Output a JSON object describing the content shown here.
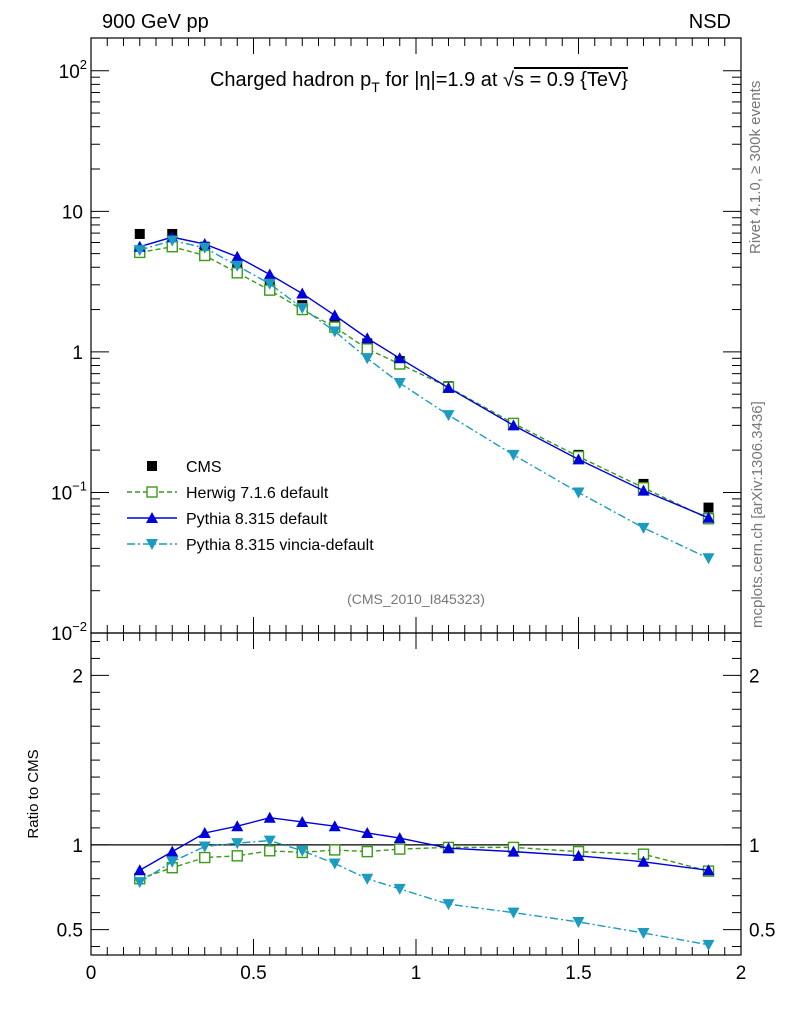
{
  "header": {
    "left": "900 GeV pp",
    "right": "NSD"
  },
  "side": {
    "rivet": "Rivet 4.1.0, ≥ 300k events",
    "mcplots": "mcplots.cern.ch [arXiv:1306.3436]"
  },
  "chart_data": [
    {
      "type": "line",
      "title": "Charged hadron p_T for |η|=1.9 at √s = 0.9 {TeV}",
      "title_parts": {
        "pre": "Charged hadron p",
        "sub": "T",
        "mid": " for |η|=1.9 at ",
        "root": "√",
        "post": "s = 0.9 {TeV}"
      },
      "annotation": "(CMS_2010_I845323)",
      "yscale": "log",
      "xlim": [
        0,
        2
      ],
      "ylim": [
        0.01,
        150
      ],
      "yticks": [
        {
          "value": 100,
          "label": "10",
          "sup": "2"
        },
        {
          "value": 10,
          "label": "10",
          "sup": ""
        },
        {
          "value": 1,
          "label": "1",
          "sup": ""
        },
        {
          "value": 0.1,
          "label": "10",
          "sup": "−1"
        },
        {
          "value": 0.01,
          "label": "10",
          "sup": "−2"
        }
      ],
      "legend_position": "lower-left",
      "x": [
        0.15,
        0.25,
        0.35,
        0.45,
        0.55,
        0.65,
        0.75,
        0.85,
        0.95,
        1.1,
        1.3,
        1.5,
        1.7,
        1.9
      ],
      "series": [
        {
          "name": "CMS",
          "color": "#000000",
          "marker": "square",
          "line": "none",
          "values": [
            6.9,
            6.9,
            5.6,
            4.0,
            2.95,
            2.15,
            1.58,
            1.15,
            0.86,
            0.57,
            0.31,
            0.185,
            0.115,
            0.078
          ]
        },
        {
          "name": "Herwig 7.1.6 default",
          "color": "#3a9a1a",
          "marker": "open-square",
          "line": "dashed",
          "values": [
            5.1,
            5.6,
            4.85,
            3.65,
            2.75,
            2.0,
            1.5,
            1.05,
            0.82,
            0.56,
            0.31,
            0.18,
            0.108,
            0.065
          ]
        },
        {
          "name": "Pythia 8.315 default",
          "color": "#0000dd",
          "marker": "triangle-up",
          "line": "solid",
          "values": [
            5.6,
            6.55,
            5.85,
            4.75,
            3.55,
            2.6,
            1.82,
            1.25,
            0.9,
            0.555,
            0.3,
            0.172,
            0.103,
            0.066
          ]
        },
        {
          "name": "Pythia 8.315 vincia-default",
          "color": "#1a9bbf",
          "marker": "triangle-down",
          "line": "dashdot",
          "values": [
            5.3,
            6.2,
            5.5,
            4.1,
            3.05,
            2.05,
            1.4,
            0.9,
            0.6,
            0.355,
            0.185,
            0.1,
            0.056,
            0.034
          ]
        }
      ]
    },
    {
      "type": "line",
      "ylabel": "Ratio to CMS",
      "xlim": [
        0,
        2
      ],
      "ylim": [
        0.35,
        2.25
      ],
      "yticks": [
        {
          "value": 0.5,
          "label": "0.5"
        },
        {
          "value": 1,
          "label": "1"
        },
        {
          "value": 2,
          "label": "2"
        }
      ],
      "xticks": [
        {
          "value": 0,
          "label": "0"
        },
        {
          "value": 0.5,
          "label": "0.5"
        },
        {
          "value": 1,
          "label": "1"
        },
        {
          "value": 1.5,
          "label": "1.5"
        },
        {
          "value": 2,
          "label": "2"
        }
      ],
      "reference_line": 1,
      "x": [
        0.15,
        0.25,
        0.35,
        0.45,
        0.55,
        0.65,
        0.75,
        0.85,
        0.95,
        1.1,
        1.3,
        1.5,
        1.7,
        1.9
      ],
      "series": [
        {
          "name": "Herwig 7.1.6 default",
          "color": "#3a9a1a",
          "marker": "open-square",
          "line": "dashed",
          "values": [
            0.8,
            0.865,
            0.925,
            0.935,
            0.965,
            0.955,
            0.97,
            0.96,
            0.975,
            0.985,
            0.985,
            0.96,
            0.945,
            0.845
          ]
        },
        {
          "name": "Pythia 8.315 default",
          "color": "#0000dd",
          "marker": "triangle-up",
          "line": "solid",
          "values": [
            0.85,
            0.96,
            1.07,
            1.11,
            1.16,
            1.135,
            1.11,
            1.07,
            1.04,
            0.98,
            0.96,
            0.935,
            0.9,
            0.85
          ]
        },
        {
          "name": "Pythia 8.315 vincia-default",
          "color": "#1a9bbf",
          "marker": "triangle-down",
          "line": "dashdot",
          "values": [
            0.78,
            0.9,
            0.99,
            1.01,
            1.025,
            0.965,
            0.89,
            0.8,
            0.74,
            0.65,
            0.6,
            0.545,
            0.48,
            0.41
          ]
        }
      ]
    }
  ]
}
